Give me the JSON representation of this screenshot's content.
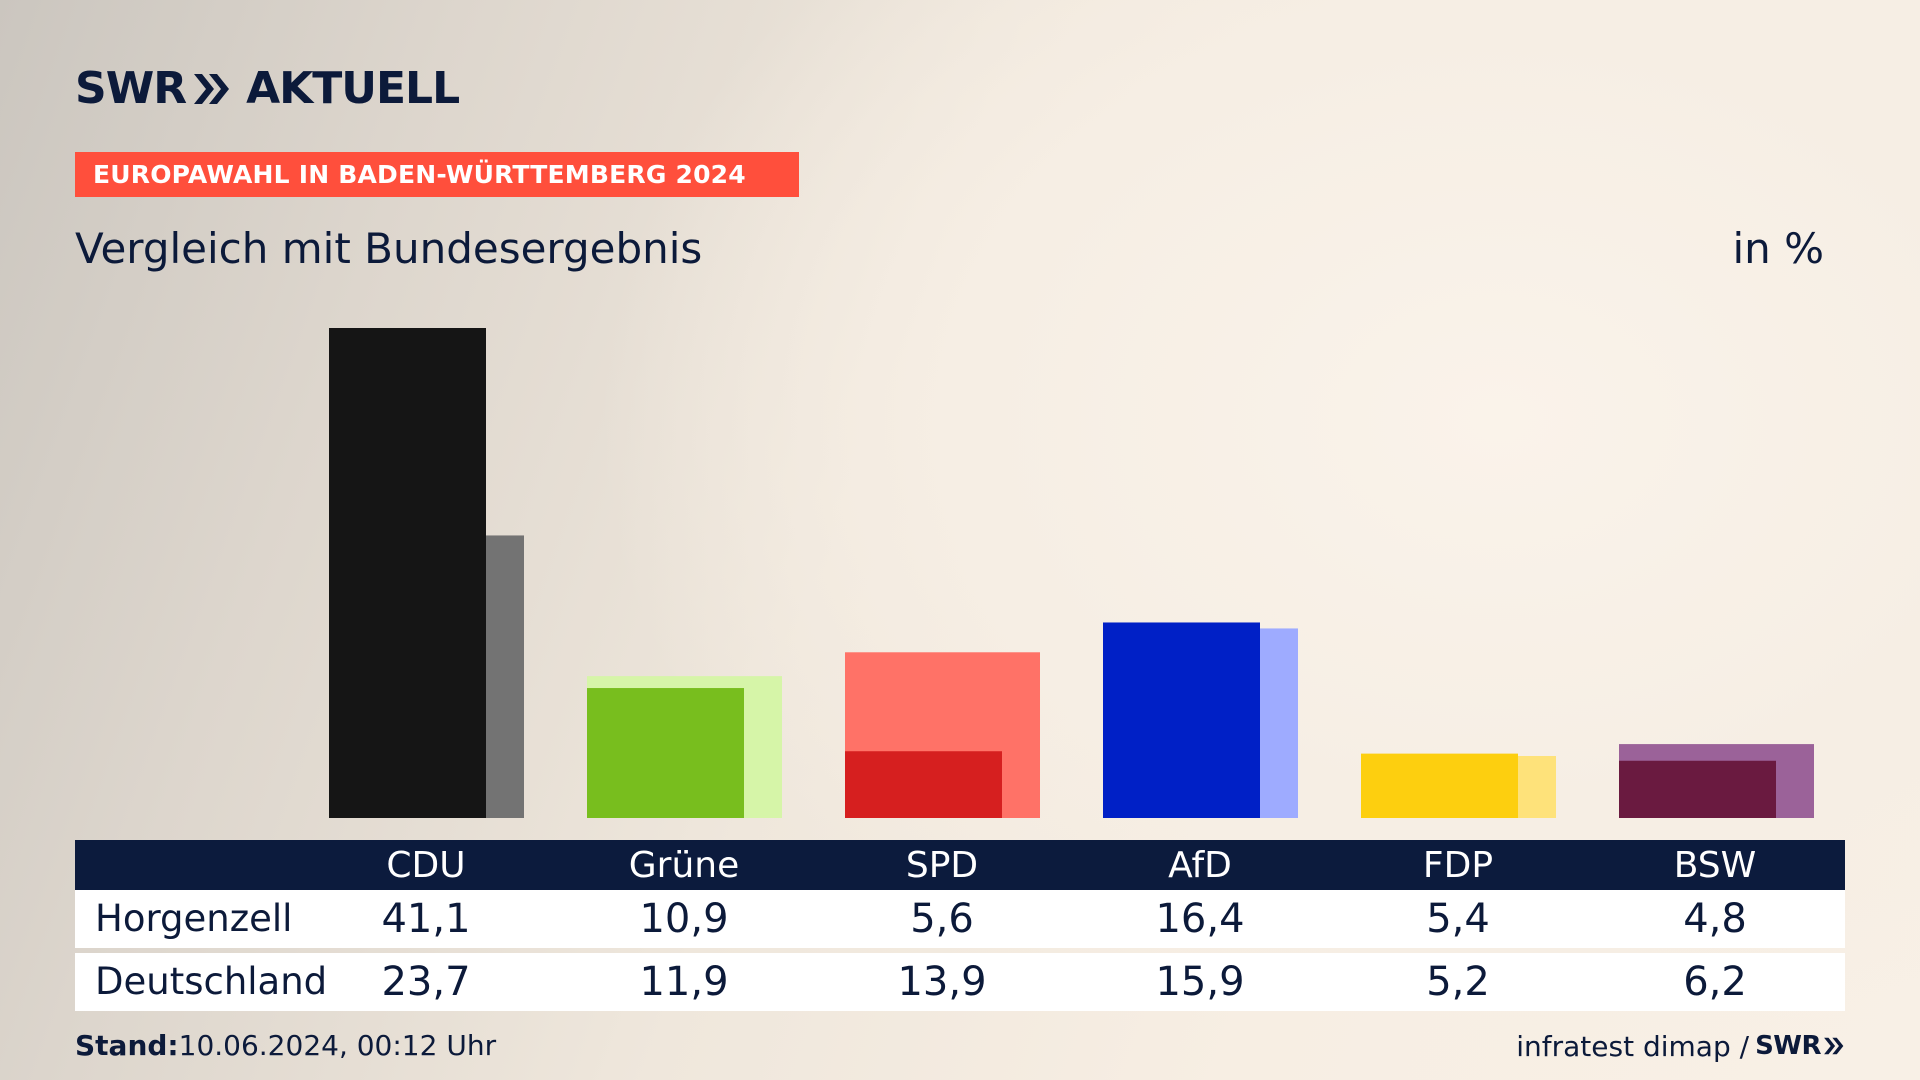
{
  "logo": {
    "brand": "SWR",
    "product": "AKTUELL",
    "icon": "double-chevron-icon"
  },
  "banner": {
    "text": "EUROPAWAHL IN BADEN-WÜRTTEMBERG 2024",
    "color": "#ff4f3c"
  },
  "subtitle": "Vergleich mit Bundesergebnis",
  "unit": "in %",
  "chart_data": {
    "type": "bar",
    "title": "Vergleich mit Bundesergebnis",
    "unit": "in %",
    "categories": [
      "CDU",
      "Grüne",
      "SPD",
      "AfD",
      "FDP",
      "BSW"
    ],
    "series": [
      {
        "name": "Horgenzell",
        "values": [
          41.1,
          10.9,
          5.6,
          16.4,
          5.4,
          4.8
        ],
        "colors": [
          "#151515",
          "#78be1e",
          "#d61f1f",
          "#0020c6",
          "#fdcf0f",
          "#6a1a40"
        ]
      },
      {
        "name": "Deutschland",
        "values": [
          23.7,
          11.9,
          13.9,
          15.9,
          5.2,
          6.2
        ],
        "colors": [
          "#737373",
          "#d6f5a8",
          "#ff7267",
          "#9eabff",
          "#fee27a",
          "#9b6299"
        ]
      }
    ],
    "ylim": [
      0,
      41.1
    ],
    "grid": false
  },
  "table": {
    "headers": [
      "CDU",
      "Grüne",
      "SPD",
      "AfD",
      "FDP",
      "BSW"
    ],
    "header_bg": "#0c1b3d",
    "rows": [
      {
        "label": "Horgenzell",
        "values": [
          "41,1",
          "10,9",
          "5,6",
          "16,4",
          "5,4",
          "4,8"
        ]
      },
      {
        "label": "Deutschland",
        "values": [
          "23,7",
          "11,9",
          "13,9",
          "15,9",
          "5,2",
          "6,2"
        ]
      }
    ]
  },
  "footer": {
    "stand_label": "Stand:",
    "stand_value": "10.06.2024, 00:12 Uhr",
    "source": "infratest dimap /",
    "brand": "SWR",
    "icon": "double-chevron-icon"
  }
}
